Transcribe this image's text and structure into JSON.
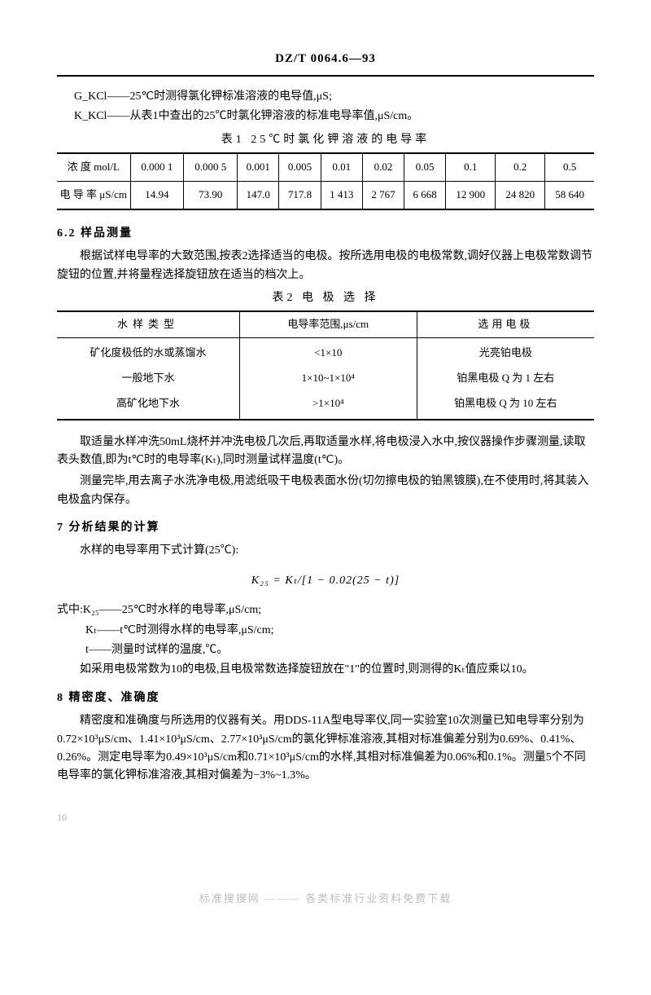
{
  "header": {
    "code": "DZ/T 0064.6—93"
  },
  "defs": {
    "line1": "G_KCl——25℃时测得氯化钾标准溶液的电导值,μS;",
    "line2": "K_KCl——从表1中查出的25℃时氯化钾溶液的标准电导率值,μS/cm。"
  },
  "table1": {
    "caption": "表1  25℃时氯化钾溶液的电导率",
    "row1_label": "浓    度\nmol/L",
    "row2_label": "电  导  率\nμS/cm",
    "conc": [
      "0.000 1",
      "0.000 5",
      "0.001",
      "0.005",
      "0.01",
      "0.02",
      "0.05",
      "0.1",
      "0.2",
      "0.5"
    ],
    "cond": [
      "14.94",
      "73.90",
      "147.0",
      "717.8",
      "1 413",
      "2 767",
      "6 668",
      "12 900",
      "24 820",
      "58 640"
    ]
  },
  "s62": {
    "head": "6.2  样品测量",
    "p1": "根据试样电导率的大致范围,按表2选择适当的电极。按所选用电极的电极常数,调好仪器上电极常数调节旋钮的位置,并将量程选择旋钮放在适当的档次上。"
  },
  "table2": {
    "caption": "表2  电 极 选 择",
    "h1": "水样类型",
    "h2": "电导率范围,μs/cm",
    "h3": "选用电极",
    "rows": [
      {
        "a": "矿化度极低的水或蒸馏水",
        "b": "<1×10",
        "c": "光亮铂电极"
      },
      {
        "a": "一般地下水",
        "b": "1×10~1×10⁴",
        "c": "铂黑电极 Q 为 1 左右"
      },
      {
        "a": "高矿化地下水",
        "b": ">1×10⁴",
        "c": "铂黑电极 Q 为 10 左右"
      }
    ]
  },
  "after_t2": {
    "p1": "取适量水样冲洗50mL烧杯并冲洗电极几次后,再取适量水样,将电极浸入水中,按仪器操作步骤测量,读取表头数值,即为t℃时的电导率(Kₜ),同时测量试样温度(t℃)。",
    "p2": "测量完毕,用去离子水洗净电极,用滤纸吸干电极表面水份(切勿擦电极的铂黑镀膜),在不使用时,将其装入电极盒内保存。"
  },
  "s7": {
    "head": "7  分析结果的计算",
    "p1": "水样的电导率用下式计算(25℃):",
    "formula": "K₂₅ = Kₜ/[1 − 0.02(25 − t)]",
    "where0": "式中:K₂₅——25℃时水样的电导率,μS/cm;",
    "where1": "Kₜ——t℃时测得水样的电导率,μS/cm;",
    "where2": "t——测量时试样的温度,℃。",
    "p2": "如采用电极常数为10的电极,且电极常数选择旋钮放在\"1\"的位置时,则测得的Kₜ值应乘以10。"
  },
  "s8": {
    "head": "8  精密度、准确度",
    "p1": "精密度和准确度与所选用的仪器有关。用DDS-11A型电导率仪,同一实验室10次测量已知电导率分别为0.72×10³μS/cm、1.41×10³μS/cm、2.77×10³μS/cm的氯化钾标准溶液,其相对标准偏差分别为0.69%、0.41%、0.26%。测定电导率为0.49×10³μS/cm和0.71×10³μS/cm的水样,其相对标准偏差为0.06%和0.1%。测量5个不同电导率的氯化钾标准溶液,其相对偏差为−3%~1.3%。"
  },
  "footer": "标准搜搜网  ———  各类标准行业资料免费下载",
  "pagenum": "10"
}
